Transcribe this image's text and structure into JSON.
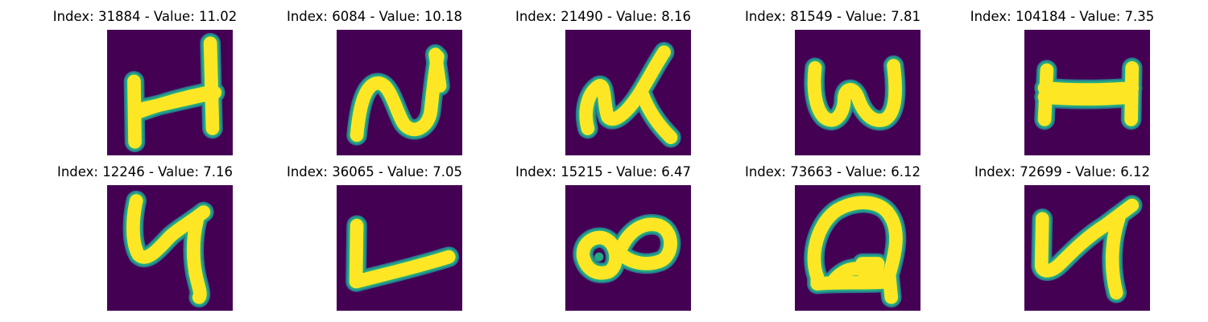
{
  "colors": {
    "background": "#440154",
    "stroke_core": "#fde725",
    "stroke_edge": "#22a884",
    "stroke_halo": "#2a788e"
  },
  "panels": [
    {
      "title": "Index: 31884 - Value: 11.02",
      "glyph": "handwritten-H"
    },
    {
      "title": "Index: 6084 - Value: 10.18",
      "glyph": "handwritten-N"
    },
    {
      "title": "Index: 21490 - Value: 8.16",
      "glyph": "handwritten-d"
    },
    {
      "title": "Index: 81549 - Value: 7.81",
      "glyph": "handwritten-w"
    },
    {
      "title": "Index: 104184 - Value: 7.35",
      "glyph": "handwritten-H-bar"
    },
    {
      "title": "Index: 12246 - Value: 7.16",
      "glyph": "handwritten-y"
    },
    {
      "title": "Index: 36065 - Value: 7.05",
      "glyph": "handwritten-L"
    },
    {
      "title": "Index: 15215 - Value: 6.47",
      "glyph": "handwritten-infinity"
    },
    {
      "title": "Index: 73663 - Value: 6.12",
      "glyph": "handwritten-Q"
    },
    {
      "title": "Index: 72699 - Value: 6.12",
      "glyph": "handwritten-y2"
    }
  ]
}
